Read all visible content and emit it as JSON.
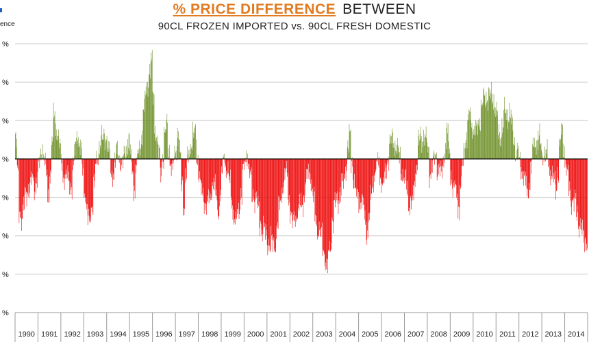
{
  "title": {
    "accent": "% PRICE DIFFERENCE",
    "rest": "BETWEEN",
    "subtitle": "90CL FROZEN IMPORTED vs. 90CL FRESH DOMESTIC"
  },
  "legend_fragment": "ence",
  "colors": {
    "positive": "#6b8e23",
    "negative": "#ee0000",
    "grid": "#cccccc",
    "zero_line": "#000000"
  },
  "chart_data": {
    "type": "bar",
    "title": "% PRICE DIFFERENCE BETWEEN 90CL FROZEN IMPORTED vs. 90CL FRESH DOMESTIC",
    "xlabel": "",
    "ylabel": "",
    "ylim": [
      -40,
      30
    ],
    "grid": true,
    "y_tick_labels": [
      "%",
      "%",
      "%",
      "%",
      "%",
      "%",
      "%",
      "%"
    ],
    "years": [
      "1990",
      "1991",
      "1992",
      "1993",
      "1994",
      "1995",
      "1996",
      "1997",
      "1998",
      "1999",
      "2000",
      "2001",
      "2002",
      "2003",
      "2004",
      "2005",
      "2006",
      "2007",
      "2008",
      "2009",
      "2010",
      "2011",
      "2012",
      "2013",
      "2014"
    ],
    "anchors": [
      [
        "1990-01",
        4
      ],
      [
        "1990-03",
        -14
      ],
      [
        "1990-07",
        -9
      ],
      [
        "1990-12",
        -4
      ],
      [
        "1991-03",
        2
      ],
      [
        "1991-06",
        -8
      ],
      [
        "1991-09",
        10
      ],
      [
        "1991-12",
        3
      ],
      [
        "1992-03",
        -5
      ],
      [
        "1992-06",
        -8
      ],
      [
        "1992-09",
        9
      ],
      [
        "1992-12",
        -4
      ],
      [
        "1993-03",
        -16
      ],
      [
        "1993-06",
        -8
      ],
      [
        "1993-09",
        5
      ],
      [
        "1993-12",
        7
      ],
      [
        "1994-03",
        -5
      ],
      [
        "1994-06",
        3
      ],
      [
        "1994-09",
        -3
      ],
      [
        "1994-12",
        7
      ],
      [
        "1995-03",
        -8
      ],
      [
        "1995-06",
        4
      ],
      [
        "1995-09",
        17
      ],
      [
        "1995-12",
        24
      ],
      [
        "1996-02",
        10
      ],
      [
        "1996-05",
        -4
      ],
      [
        "1996-08",
        9
      ],
      [
        "1996-11",
        -4
      ],
      [
        "1997-02",
        6
      ],
      [
        "1997-05",
        -10
      ],
      [
        "1997-08",
        2
      ],
      [
        "1997-11",
        8
      ],
      [
        "1998-02",
        -10
      ],
      [
        "1998-05",
        -12
      ],
      [
        "1998-08",
        -6
      ],
      [
        "1998-11",
        -14
      ],
      [
        "1999-02",
        2
      ],
      [
        "1999-05",
        -8
      ],
      [
        "1999-08",
        -16
      ],
      [
        "1999-11",
        -10
      ],
      [
        "2000-02",
        3
      ],
      [
        "2000-05",
        -9
      ],
      [
        "2000-08",
        -14
      ],
      [
        "2000-11",
        -18
      ],
      [
        "2001-02",
        -24
      ],
      [
        "2001-05",
        -20
      ],
      [
        "2001-08",
        -10
      ],
      [
        "2001-11",
        -3
      ],
      [
        "2002-02",
        -18
      ],
      [
        "2002-05",
        -14
      ],
      [
        "2002-08",
        -8
      ],
      [
        "2002-11",
        -4
      ],
      [
        "2003-02",
        -14
      ],
      [
        "2003-05",
        -22
      ],
      [
        "2003-08",
        -28
      ],
      [
        "2003-11",
        -16
      ],
      [
        "2004-02",
        -10
      ],
      [
        "2004-05",
        -4
      ],
      [
        "2004-08",
        4
      ],
      [
        "2004-11",
        -8
      ],
      [
        "2005-02",
        -12
      ],
      [
        "2005-05",
        -18
      ],
      [
        "2005-08",
        -6
      ],
      [
        "2005-11",
        -2
      ],
      [
        "2006-02",
        -6
      ],
      [
        "2006-05",
        3
      ],
      [
        "2006-08",
        6
      ],
      [
        "2006-11",
        -4
      ],
      [
        "2007-02",
        -8
      ],
      [
        "2007-05",
        -12
      ],
      [
        "2007-08",
        4
      ],
      [
        "2007-11",
        8
      ],
      [
        "2008-02",
        -4
      ],
      [
        "2008-05",
        2
      ],
      [
        "2008-08",
        -6
      ],
      [
        "2008-11",
        8
      ],
      [
        "2009-02",
        -8
      ],
      [
        "2009-05",
        -12
      ],
      [
        "2009-08",
        4
      ],
      [
        "2009-11",
        10
      ],
      [
        "2010-02",
        8
      ],
      [
        "2010-05",
        12
      ],
      [
        "2010-08",
        18
      ],
      [
        "2010-11",
        16
      ],
      [
        "2011-02",
        6
      ],
      [
        "2011-05",
        12
      ],
      [
        "2011-08",
        10
      ],
      [
        "2011-11",
        4
      ],
      [
        "2012-02",
        -4
      ],
      [
        "2012-05",
        -8
      ],
      [
        "2012-08",
        2
      ],
      [
        "2012-11",
        5
      ],
      [
        "2013-02",
        2
      ],
      [
        "2013-05",
        -4
      ],
      [
        "2013-08",
        -6
      ],
      [
        "2013-11",
        6
      ],
      [
        "2014-02",
        -4
      ],
      [
        "2014-05",
        -12
      ],
      [
        "2014-08",
        -16
      ],
      [
        "2014-11",
        -20
      ],
      [
        "2014-12",
        -22
      ]
    ]
  }
}
